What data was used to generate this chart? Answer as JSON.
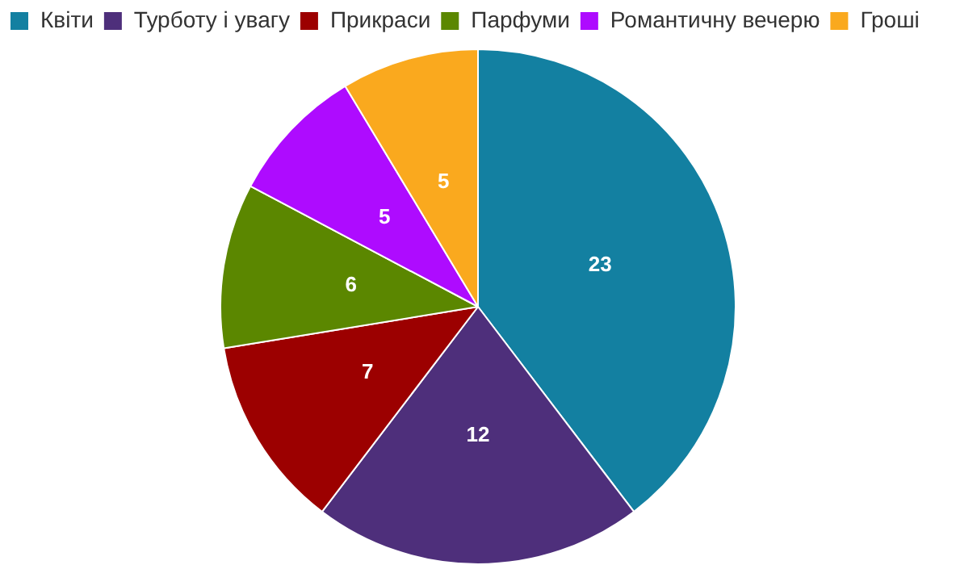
{
  "chart_data": {
    "type": "pie",
    "categories": [
      "Квіти",
      "Турботу і увагу",
      "Прикраси",
      "Парфуми",
      "Романтичну вечерю",
      "Гроші"
    ],
    "values": [
      23,
      12,
      7,
      6,
      5,
      5
    ],
    "colors": [
      "#1380a1",
      "#4e2f7b",
      "#9c0000",
      "#5b8700",
      "#ae0bff",
      "#faa91e"
    ],
    "data_labels": true,
    "legend": "top left"
  }
}
